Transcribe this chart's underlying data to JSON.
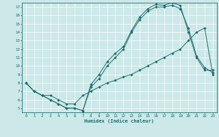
{
  "xlabel": "Humidex (Indice chaleur)",
  "bg_color": "#cce8e8",
  "line_color": "#1a6b6b",
  "grid_color": "#ffffff",
  "xlim": [
    -0.5,
    23.5
  ],
  "ylim": [
    4.5,
    17.5
  ],
  "xticks": [
    0,
    1,
    2,
    3,
    4,
    5,
    6,
    7,
    8,
    9,
    10,
    11,
    12,
    13,
    14,
    15,
    16,
    17,
    18,
    19,
    20,
    21,
    22,
    23
  ],
  "yticks": [
    5,
    6,
    7,
    8,
    9,
    10,
    11,
    12,
    13,
    14,
    15,
    16,
    17
  ],
  "line1_x": [
    0,
    1,
    2,
    3,
    4,
    5,
    6,
    7,
    8,
    9,
    10,
    11,
    12,
    13,
    14,
    15,
    16,
    17,
    18,
    19,
    20,
    21,
    22,
    23
  ],
  "line1_y": [
    8,
    7,
    6.5,
    6,
    5.5,
    5,
    5,
    4.7,
    7.5,
    8.5,
    10,
    11,
    12,
    14,
    15.5,
    16.5,
    17,
    17,
    17.2,
    16.8,
    14.5,
    11.2,
    9.8,
    9.2
  ],
  "line2_x": [
    0,
    1,
    2,
    3,
    4,
    5,
    6,
    7,
    8,
    9,
    10,
    11,
    12,
    13,
    14,
    15,
    16,
    17,
    18,
    19,
    20,
    21,
    22,
    23
  ],
  "line2_y": [
    8,
    7,
    6.5,
    6,
    5.5,
    5,
    5,
    4.7,
    7.8,
    9.0,
    10.5,
    11.5,
    12.3,
    14.2,
    15.8,
    16.8,
    17.3,
    17.2,
    17.5,
    17.2,
    14.0,
    11.0,
    9.5,
    9.5
  ],
  "line3_x": [
    0,
    1,
    2,
    3,
    4,
    5,
    6,
    7,
    8,
    9,
    10,
    11,
    12,
    13,
    14,
    15,
    16,
    17,
    18,
    19,
    20,
    21,
    22,
    23
  ],
  "line3_y": [
    8,
    7,
    6.5,
    6.5,
    6.0,
    5.5,
    5.5,
    6.5,
    7.0,
    7.5,
    8.0,
    8.3,
    8.7,
    9.0,
    9.5,
    10.0,
    10.5,
    11.0,
    11.5,
    12.0,
    13.0,
    14.0,
    14.5,
    9.0
  ]
}
